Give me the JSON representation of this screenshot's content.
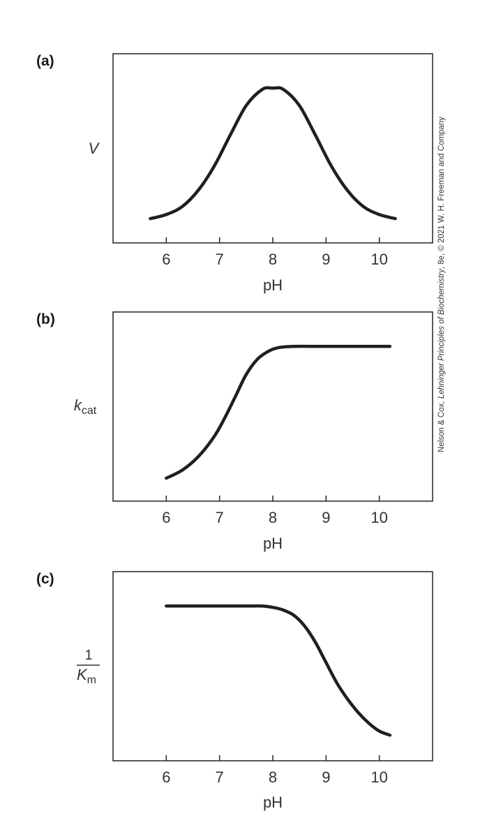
{
  "credit_text": {
    "part1": "Nelson & Cox, ",
    "part2": "Lehninger Principles of Biochemistry",
    "part3": ", 8e, © 2021 W. H. Freeman and Company"
  },
  "chart_data": [
    {
      "type": "line",
      "panel": "(a)",
      "ylabel": "V",
      "xlabel": "pH",
      "xticks": [
        "6",
        "7",
        "8",
        "9",
        "10"
      ],
      "xlim": [
        5,
        11
      ],
      "ylim": [
        0,
        1.1
      ],
      "grid": false,
      "series": [
        {
          "x": [
            5.7,
            6.0,
            6.3,
            6.6,
            6.9,
            7.2,
            7.5,
            7.8,
            8.0,
            8.2,
            8.5,
            8.8,
            9.1,
            9.4,
            9.7,
            10.0,
            10.3
          ],
          "values": [
            0.03,
            0.06,
            0.12,
            0.24,
            0.42,
            0.65,
            0.87,
            0.99,
            1.0,
            0.99,
            0.87,
            0.65,
            0.42,
            0.24,
            0.12,
            0.06,
            0.03
          ]
        }
      ]
    },
    {
      "type": "line",
      "panel": "(b)",
      "ylabel": "k",
      "ylabel_sub": "cat",
      "xlabel": "pH",
      "xticks": [
        "6",
        "7",
        "8",
        "9",
        "10"
      ],
      "xlim": [
        5,
        11
      ],
      "ylim": [
        0,
        1.1
      ],
      "grid": false,
      "series": [
        {
          "x": [
            6.0,
            6.3,
            6.6,
            6.9,
            7.1,
            7.3,
            7.5,
            7.7,
            7.9,
            8.1,
            8.4,
            8.8,
            9.2,
            9.6,
            10.0,
            10.2
          ],
          "values": [
            0.02,
            0.08,
            0.18,
            0.33,
            0.47,
            0.63,
            0.79,
            0.9,
            0.96,
            0.99,
            1.0,
            1.0,
            1.0,
            1.0,
            1.0,
            1.0
          ]
        }
      ]
    },
    {
      "type": "line",
      "panel": "(c)",
      "ylabel_num": "1",
      "ylabel": "K",
      "ylabel_sub": "m",
      "xlabel": "pH",
      "xticks": [
        "6",
        "7",
        "8",
        "9",
        "10"
      ],
      "xlim": [
        5,
        11
      ],
      "ylim": [
        0,
        1.1
      ],
      "grid": false,
      "series": [
        {
          "x": [
            6.0,
            6.5,
            7.0,
            7.5,
            7.8,
            8.0,
            8.2,
            8.4,
            8.6,
            8.8,
            9.0,
            9.2,
            9.4,
            9.6,
            9.8,
            10.0,
            10.2
          ],
          "values": [
            1.0,
            1.0,
            1.0,
            1.0,
            1.0,
            0.99,
            0.97,
            0.93,
            0.85,
            0.73,
            0.58,
            0.43,
            0.31,
            0.21,
            0.13,
            0.07,
            0.04
          ]
        }
      ]
    }
  ]
}
